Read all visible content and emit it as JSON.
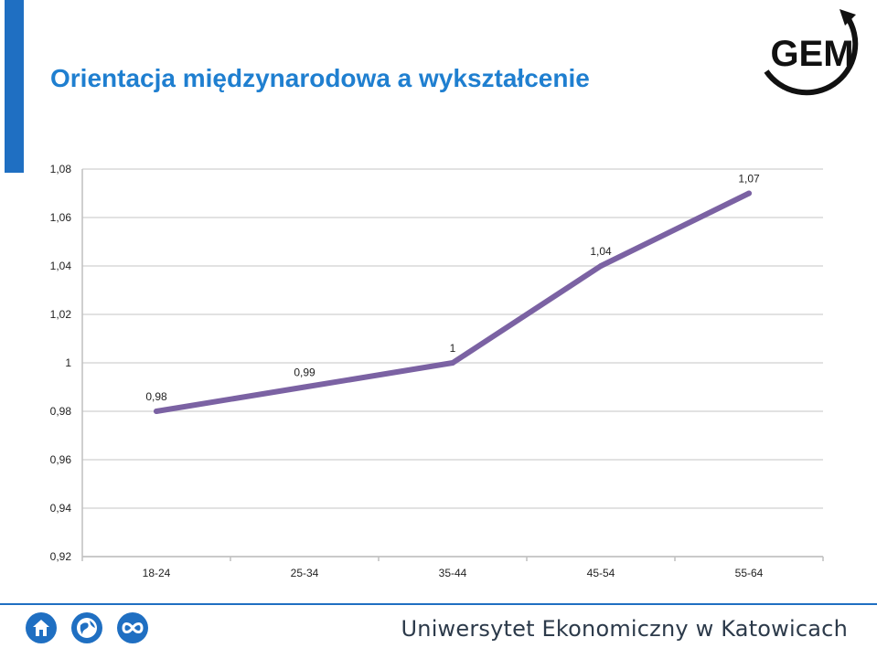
{
  "slide": {
    "title": "Orientacja międzynarodowa a wykształcenie",
    "logo_text": "GEM",
    "footer_text": "Uniwersytet Ekonomiczny w Katowicach",
    "footer_icons": [
      "home-icon",
      "globe-icon",
      "infinity-icon"
    ]
  },
  "colors": {
    "accent": "#1f6fc2",
    "title": "#1f7fd0",
    "series": "#7b62a3",
    "grid": "#d9d9d9"
  },
  "chart_data": {
    "type": "line",
    "categories": [
      "18-24",
      "25-34",
      "35-44",
      "45-54",
      "55-64"
    ],
    "series": [
      {
        "values": [
          0.98,
          0.99,
          1.0,
          1.04,
          1.07
        ]
      }
    ],
    "data_labels": [
      "0,98",
      "0,99",
      "1",
      "1,04",
      "1,07"
    ],
    "ylim": [
      0.92,
      1.08
    ],
    "yticks": [
      0.92,
      0.94,
      0.96,
      0.98,
      1.0,
      1.02,
      1.04,
      1.06,
      1.08
    ],
    "ytick_labels": [
      "0,92",
      "0,94",
      "0,96",
      "0,98",
      "1",
      "1,02",
      "1,04",
      "1,06",
      "1,08"
    ],
    "grid": true,
    "legend": "none",
    "title": "",
    "xlabel": "",
    "ylabel": ""
  }
}
